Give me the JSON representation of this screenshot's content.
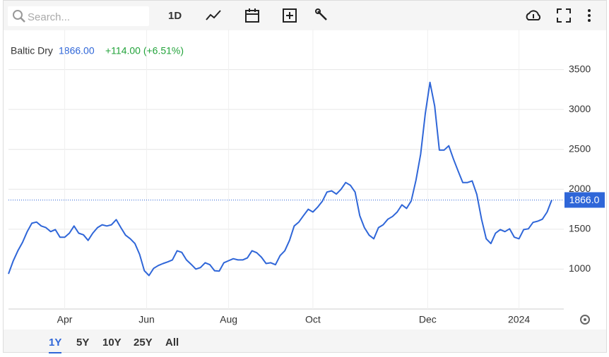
{
  "toolbar": {
    "search_placeholder": "Search...",
    "interval": "1D"
  },
  "range_buttons": [
    "1Y",
    "5Y",
    "10Y",
    "25Y",
    "All"
  ],
  "chart_data": {
    "type": "line",
    "name": "Baltic Dry",
    "last": "1866.00",
    "change": "+114.00 (+6.51%)",
    "price_tag": "1866.0",
    "series": [
      {
        "name": "Baltic Dry",
        "color": "#2f66d8",
        "values": [
          940,
          1100,
          1230,
          1335,
          1470,
          1575,
          1590,
          1540,
          1520,
          1470,
          1495,
          1400,
          1400,
          1450,
          1540,
          1450,
          1430,
          1360,
          1450,
          1520,
          1555,
          1540,
          1555,
          1620,
          1520,
          1425,
          1380,
          1320,
          1185,
          980,
          920,
          1010,
          1045,
          1070,
          1090,
          1115,
          1230,
          1210,
          1115,
          1060,
          1000,
          1020,
          1080,
          1055,
          980,
          975,
          1080,
          1105,
          1130,
          1115,
          1115,
          1140,
          1230,
          1205,
          1150,
          1070,
          1080,
          1055,
          1170,
          1230,
          1360,
          1540,
          1590,
          1670,
          1750,
          1715,
          1775,
          1850,
          1965,
          1980,
          1940,
          2000,
          2085,
          2050,
          1965,
          1670,
          1520,
          1425,
          1380,
          1520,
          1555,
          1625,
          1660,
          1715,
          1805,
          1760,
          1855,
          2115,
          2440,
          2950,
          3340,
          3040,
          2490,
          2490,
          2545,
          2380,
          2230,
          2085,
          2085,
          2105,
          1935,
          1625,
          1380,
          1320,
          1450,
          1495,
          1470,
          1505,
          1400,
          1380,
          1495,
          1505,
          1585,
          1600,
          1625,
          1715,
          1866
        ]
      }
    ],
    "xlim": [
      0,
      116
    ],
    "xticks": [
      {
        "value": 12,
        "label": "Apr"
      },
      {
        "value": 29.5,
        "label": "Jun"
      },
      {
        "value": 47,
        "label": "Aug"
      },
      {
        "value": 65,
        "label": "Oct"
      },
      {
        "value": 89.5,
        "label": "Dec"
      },
      {
        "value": 109,
        "label": "2024"
      }
    ],
    "ylim": [
      500,
      4000
    ],
    "yticks": [
      1000,
      1500,
      2000,
      2500,
      3000,
      3500
    ],
    "grid": true
  }
}
